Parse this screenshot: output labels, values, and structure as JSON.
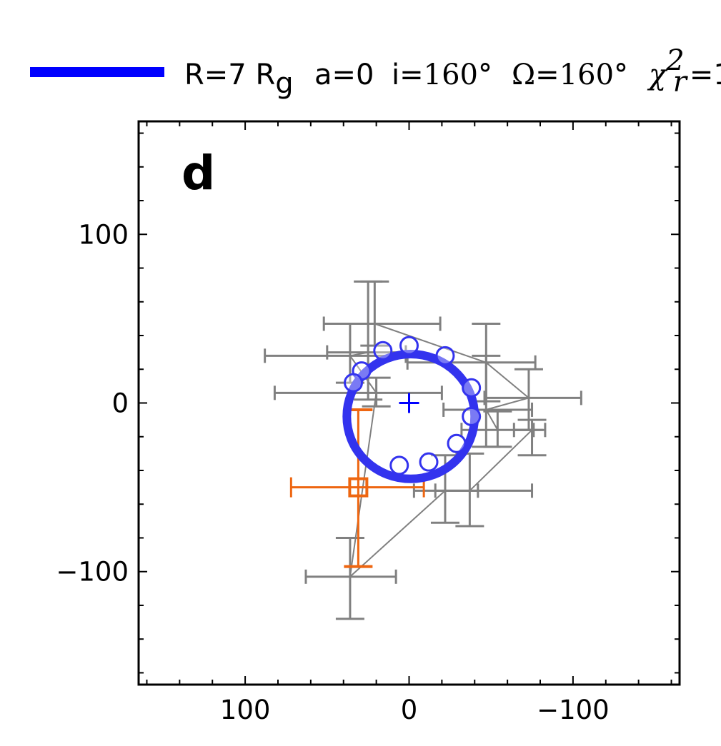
{
  "chart_data": {
    "type": "scatter",
    "panel_label": "d",
    "xlim": [
      165,
      -165
    ],
    "ylim": [
      -167,
      167
    ],
    "x_ticks": [
      100,
      0,
      -100
    ],
    "y_ticks": [
      100,
      0,
      -100
    ],
    "x_tick_labels": [
      "100",
      "0",
      "−100"
    ],
    "y_tick_labels": [
      "100",
      "0",
      "−100"
    ],
    "grid": false,
    "legend": {
      "placement": "top",
      "color": "#0000ff",
      "parts": {
        "r": "R=7 R",
        "r_sub": "g",
        "a": "a=0",
        "i_prefix": "i=",
        "i_value": "160°",
        "omega_symbol": "Ω",
        "omega_eq": "=",
        "omega_value": "160°",
        "chi": "χ",
        "chi_sub": "r",
        "chi_sup": "2",
        "chi_eq": "=1"
      }
    },
    "observed_track": {
      "color": "#808080",
      "points": [
        {
          "x": 21,
          "y": 47,
          "xerr_left": 31,
          "xerr_right": 40,
          "yerr_low": 13,
          "yerr_high": 25
        },
        {
          "x": -47,
          "y": 24,
          "xerr_left": 48,
          "xerr_right": 30,
          "yerr_low": 23,
          "yerr_high": 23
        },
        {
          "x": -73,
          "y": 3,
          "xerr_left": 27,
          "xerr_right": 32,
          "yerr_low": 19,
          "yerr_high": 17
        },
        {
          "x": -47,
          "y": -4,
          "xerr_left": 26,
          "xerr_right": 28,
          "yerr_low": 22,
          "yerr_high": 32
        },
        {
          "x": -54,
          "y": -16,
          "xerr_left": 22,
          "xerr_right": 22,
          "yerr_low": 10,
          "yerr_high": 11
        },
        {
          "x": -75,
          "y": -16,
          "xerr_left": 11,
          "xerr_right": 8,
          "yerr_low": 15,
          "yerr_high": 6
        },
        {
          "x": -37,
          "y": -52,
          "xerr_left": 21,
          "xerr_right": 38,
          "yerr_low": 21,
          "yerr_high": 22
        },
        {
          "x": -22,
          "y": -52,
          "xerr_left": 19,
          "xerr_right": 20,
          "yerr_low": 19,
          "yerr_high": 21
        },
        {
          "x": 36,
          "y": -103,
          "xerr_left": 27,
          "xerr_right": 28,
          "yerr_low": 25,
          "yerr_high": 23
        },
        {
          "x": 20,
          "y": 6,
          "xerr_left": 62,
          "xerr_right": 40,
          "yerr_low": 8,
          "yerr_high": 9
        },
        {
          "x": 36,
          "y": 28,
          "xerr_left": 52,
          "xerr_right": 34,
          "yerr_low": 16,
          "yerr_high": 19
        },
        {
          "x": 25,
          "y": 30,
          "xerr_left": 25,
          "xerr_right": 23,
          "yerr_low": 28,
          "yerr_high": 42
        }
      ]
    },
    "model_orbit": {
      "color": "#3333ee",
      "center_x": -1,
      "center_y": -8,
      "radius_x": 39,
      "radius_y": 37,
      "center_marker": {
        "x": 0,
        "y": 0
      },
      "markers": [
        {
          "x": -22,
          "y": 28
        },
        {
          "x": 0,
          "y": 34
        },
        {
          "x": 16,
          "y": 31
        },
        {
          "x": 29,
          "y": 19
        },
        {
          "x": 34,
          "y": 12
        },
        {
          "x": -38,
          "y": 9
        },
        {
          "x": -38,
          "y": -8
        },
        {
          "x": -29,
          "y": -24
        },
        {
          "x": -12,
          "y": -35
        },
        {
          "x": 6,
          "y": -37
        }
      ]
    },
    "reference_point": {
      "color": "#ee6611",
      "x": 31,
      "y": -50,
      "xerr_left": 41,
      "xerr_right": 40,
      "yerr_low": 47,
      "yerr_high": 46
    }
  }
}
